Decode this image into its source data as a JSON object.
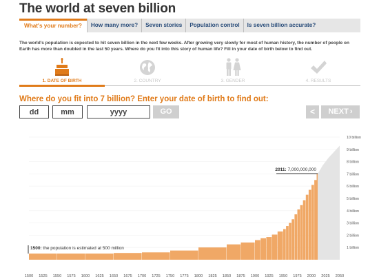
{
  "page": {
    "title": "The world at seven billion"
  },
  "tabs": [
    {
      "label": "What's your number?",
      "active": true
    },
    {
      "label": "How many more?"
    },
    {
      "label": "Seven stories"
    },
    {
      "label": "Population control"
    },
    {
      "label": "Is seven billion accurate?"
    }
  ],
  "intro": "The world's population is expected to hit seven billion in the next few weeks. After growing very slowly for most of human history, the number of people on Earth has more than doubled in the last 50 years. Where do you fit into this story of human life? Fill in your date of birth below to find out.",
  "steps": [
    {
      "label": "1. DATE OF BIRTH",
      "icon": "cake-icon",
      "active": true
    },
    {
      "label": "2. COUNTRY",
      "icon": "globe-icon"
    },
    {
      "label": "3. GENDER",
      "icon": "gender-icon"
    },
    {
      "label": "4. RESULTS",
      "icon": "checkmark-icon"
    }
  ],
  "question": "Where do you fit into 7 billion? Enter your date of birth to find out:",
  "form": {
    "day_placeholder": "dd",
    "month_placeholder": "mm",
    "year_placeholder": "yyyy",
    "go_label": "GO"
  },
  "nav": {
    "prev_label": "<",
    "next_label": "NEXT"
  },
  "colors": {
    "accent": "#e07b1a",
    "bar": "#f0a866",
    "projection": "#e4e4e4",
    "button_disabled": "#cfcfcf"
  },
  "chart_data": {
    "type": "area",
    "x_ticks": [
      "1500",
      "1525",
      "1550",
      "1575",
      "1600",
      "1625",
      "1650",
      "1675",
      "1700",
      "1725",
      "1750",
      "1775",
      "1800",
      "1825",
      "1850",
      "1875",
      "1900",
      "1925",
      "1950",
      "1975",
      "2000",
      "2025",
      "2050"
    ],
    "y_ticks": [
      "1 billion",
      "2 billion",
      "3 billion",
      "4 billion",
      "5 billion",
      "6 billion",
      "7 billion",
      "8 billion",
      "9 billion",
      "10 billion"
    ],
    "ylim": [
      0,
      10
    ],
    "xlim": [
      1500,
      2050
    ],
    "unit": "billion",
    "series": [
      {
        "kind": "historical",
        "x": [
          1500,
          1550,
          1600,
          1650,
          1700,
          1750,
          1800,
          1850,
          1875,
          1900,
          1910,
          1920,
          1930,
          1940,
          1950,
          1955,
          1960,
          1965,
          1970,
          1975,
          1980,
          1985,
          1990,
          1995,
          2000,
          2005,
          2010,
          2011
        ],
        "values": [
          0.5,
          0.5,
          0.5,
          0.55,
          0.6,
          0.75,
          1.0,
          1.25,
          1.4,
          1.6,
          1.75,
          1.85,
          2.05,
          2.3,
          2.5,
          2.75,
          3.0,
          3.3,
          3.7,
          4.1,
          4.45,
          4.85,
          5.3,
          5.7,
          6.1,
          6.5,
          6.9,
          7.0
        ]
      },
      {
        "kind": "projection",
        "x": [
          2011,
          2020,
          2030,
          2040,
          2050
        ],
        "values": [
          7.0,
          7.7,
          8.3,
          8.8,
          9.3
        ]
      }
    ],
    "annotations": [
      {
        "bold": "1500:",
        "text": " the population is estimated at 500 million"
      },
      {
        "bold": "2011:",
        "text": " 7,000,000,000"
      }
    ]
  }
}
